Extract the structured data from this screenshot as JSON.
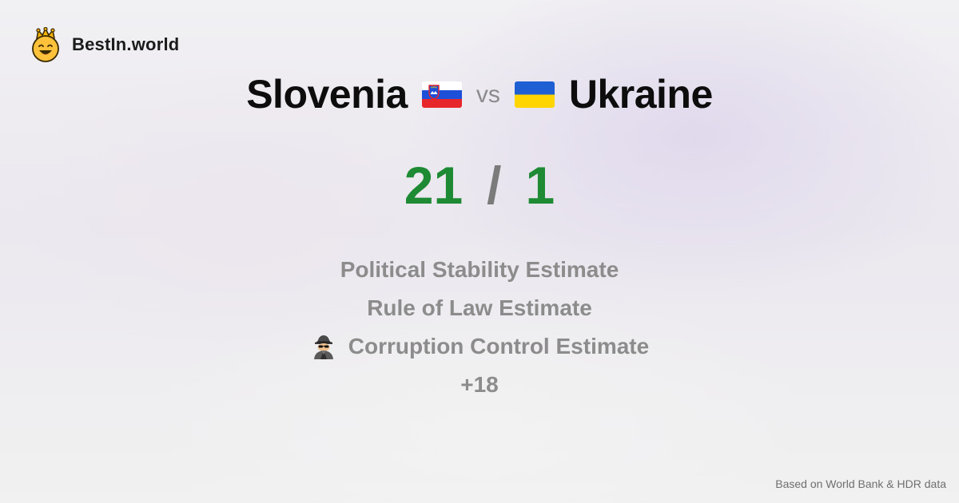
{
  "brand": {
    "name": "BestIn.world",
    "logo_icon": "crown-smiley-icon"
  },
  "comparison": {
    "left_country": "Slovenia",
    "right_country": "Ukraine",
    "vs_label": "vs",
    "left_flag_icon": "slovenia-flag-icon",
    "right_flag_icon": "ukraine-flag-icon"
  },
  "score": {
    "left": "21",
    "separator": "/",
    "right": "1",
    "color": "#1e8b34"
  },
  "metrics": [
    {
      "label": "Political Stability Estimate"
    },
    {
      "label": "Rule of Law Estimate"
    },
    {
      "label": "Corruption Control Estimate",
      "icon": "detective-icon"
    }
  ],
  "more_label": "+18",
  "footer": {
    "source": "Based on World Bank & HDR data"
  }
}
